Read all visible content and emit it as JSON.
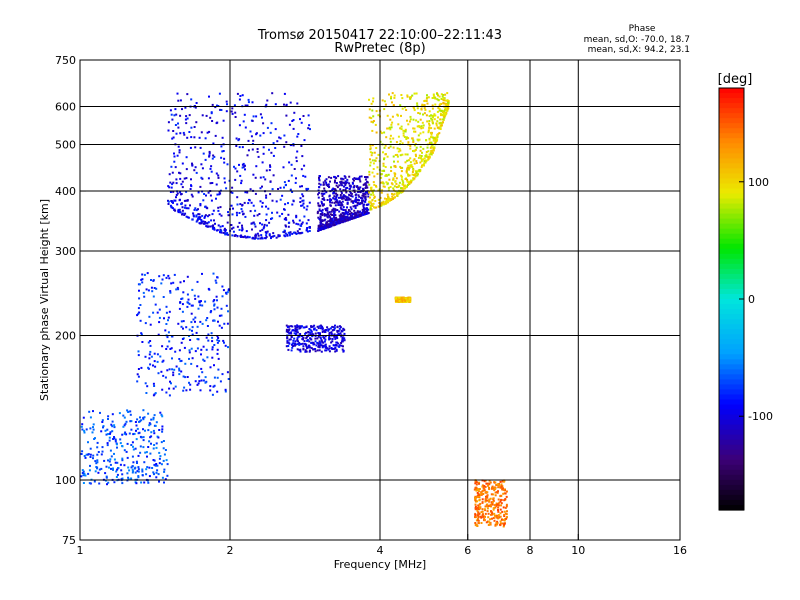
{
  "title": "Tromsø 20150417 22:10:00–22:11:43",
  "subtitle": "RwPretec (8p)",
  "stats": {
    "label": "Phase",
    "line_o": "mean, sd,O: -70.0, 18.7",
    "line_x": "mean, sd,X:  94.2, 23.1"
  },
  "chart_data": {
    "type": "scatter",
    "xlabel": "Frequency [MHz]",
    "ylabel": "Stationary phase Virtual Height [km]",
    "x_scale": "log",
    "y_scale": "log",
    "xlim": [
      1,
      16
    ],
    "ylim": [
      75,
      750
    ],
    "x_ticks": [
      1,
      2,
      4,
      6,
      8,
      10,
      16
    ],
    "x_tick_labels": [
      "1",
      "2",
      "4",
      "6",
      "8",
      "10",
      "16"
    ],
    "y_ticks": [
      75,
      100,
      200,
      300,
      400,
      500,
      600,
      750
    ],
    "y_tick_labels": [
      "75",
      "100",
      "200",
      "300",
      "400",
      "500",
      "600",
      "750"
    ],
    "vertical_gridlines": [
      2,
      4,
      6,
      8,
      10
    ],
    "horizontal_gridlines": [
      100,
      200,
      300,
      400,
      500,
      600
    ],
    "grid": true,
    "colorbar": {
      "label": "[deg]",
      "min": -180,
      "max": 180,
      "ticks": [
        -100,
        0,
        100
      ],
      "tick_labels": [
        "-100",
        "0",
        "100"
      ]
    },
    "traces": [
      {
        "x_range": [
          1.5,
          2.9
        ],
        "lower_edge_heights": [
          370,
          345,
          325,
          318,
          320,
          330
        ],
        "top": 640,
        "phase": -95
      },
      {
        "x_range": [
          3.0,
          3.8
        ],
        "lower_edge_heights": [
          330,
          345,
          360
        ],
        "top": 430,
        "phase": -110
      },
      {
        "x_range": [
          3.8,
          5.5
        ],
        "lower_edge_heights": [
          365,
          375,
          395,
          430,
          480,
          600
        ],
        "top": 640,
        "phase": 95
      },
      {
        "x_range": [
          1.3,
          2.0
        ],
        "height_range": [
          150,
          270
        ],
        "phase": -80
      },
      {
        "x_range": [
          2.6,
          3.4
        ],
        "height_range": [
          185,
          210
        ],
        "phase": -100
      },
      {
        "x_range": [
          1.0,
          1.5
        ],
        "height_range": [
          98,
          140
        ],
        "phase": -70
      },
      {
        "x_range": [
          4.3,
          4.6
        ],
        "height_range": [
          235,
          240
        ],
        "phase": 110
      },
      {
        "x_range": [
          6.2,
          7.2
        ],
        "height_range": [
          80,
          100
        ],
        "phase": 140
      }
    ]
  }
}
